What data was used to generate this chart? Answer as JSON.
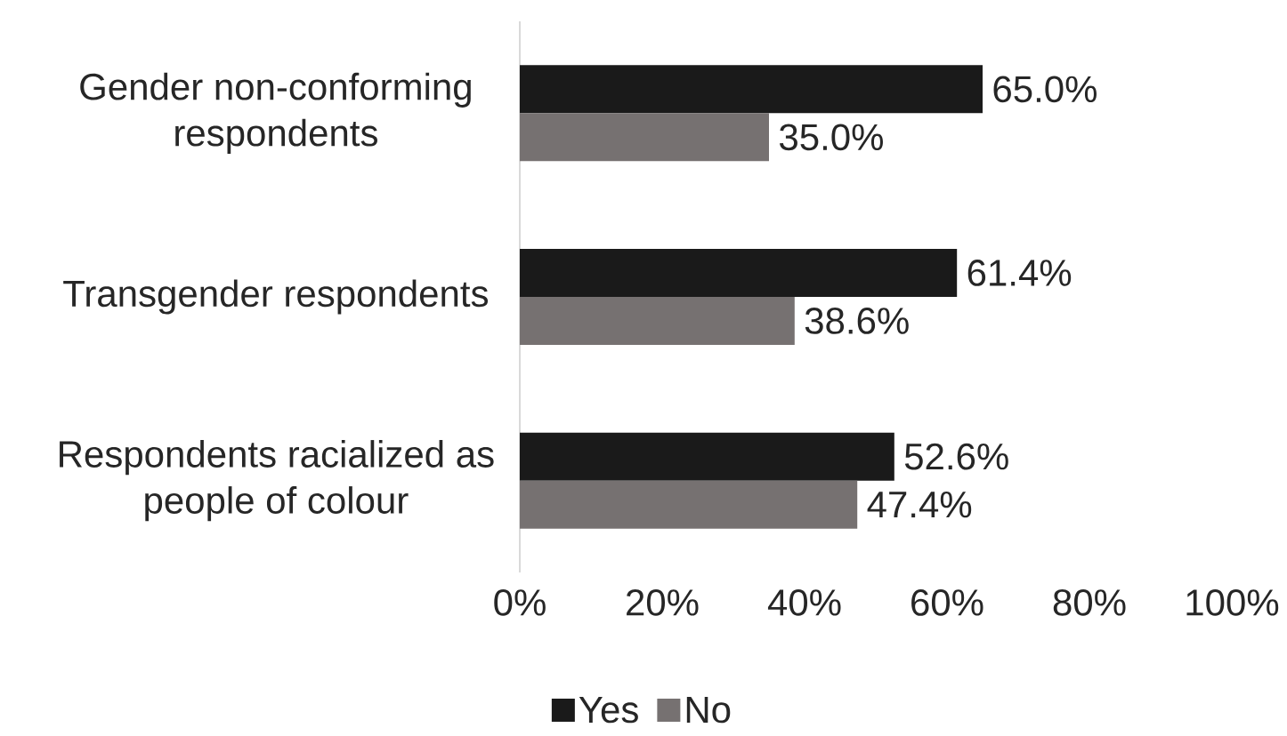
{
  "chart_data": {
    "type": "bar",
    "orientation": "horizontal",
    "categories": [
      "Gender non-conforming respondents",
      "Transgender respondents",
      "Respondents racialized as people of colour"
    ],
    "series": [
      {
        "name": "Yes",
        "color": "#1a1a1a",
        "values": [
          65.0,
          61.4,
          52.6
        ],
        "value_labels": [
          "65.0%",
          "61.4%",
          "52.6%"
        ]
      },
      {
        "name": "No",
        "color": "#767171",
        "values": [
          35.0,
          38.6,
          47.4
        ],
        "value_labels": [
          "35.0%",
          "38.6%",
          "47.4%"
        ]
      }
    ],
    "xlim": [
      0,
      100
    ],
    "xticks": [
      {
        "value": 0,
        "label": "0%"
      },
      {
        "value": 20,
        "label": "20%"
      },
      {
        "value": 40,
        "label": "40%"
      },
      {
        "value": 60,
        "label": "60%"
      },
      {
        "value": 80,
        "label": "80%"
      },
      {
        "value": 100,
        "label": "100%"
      }
    ],
    "legend": "bottom"
  }
}
